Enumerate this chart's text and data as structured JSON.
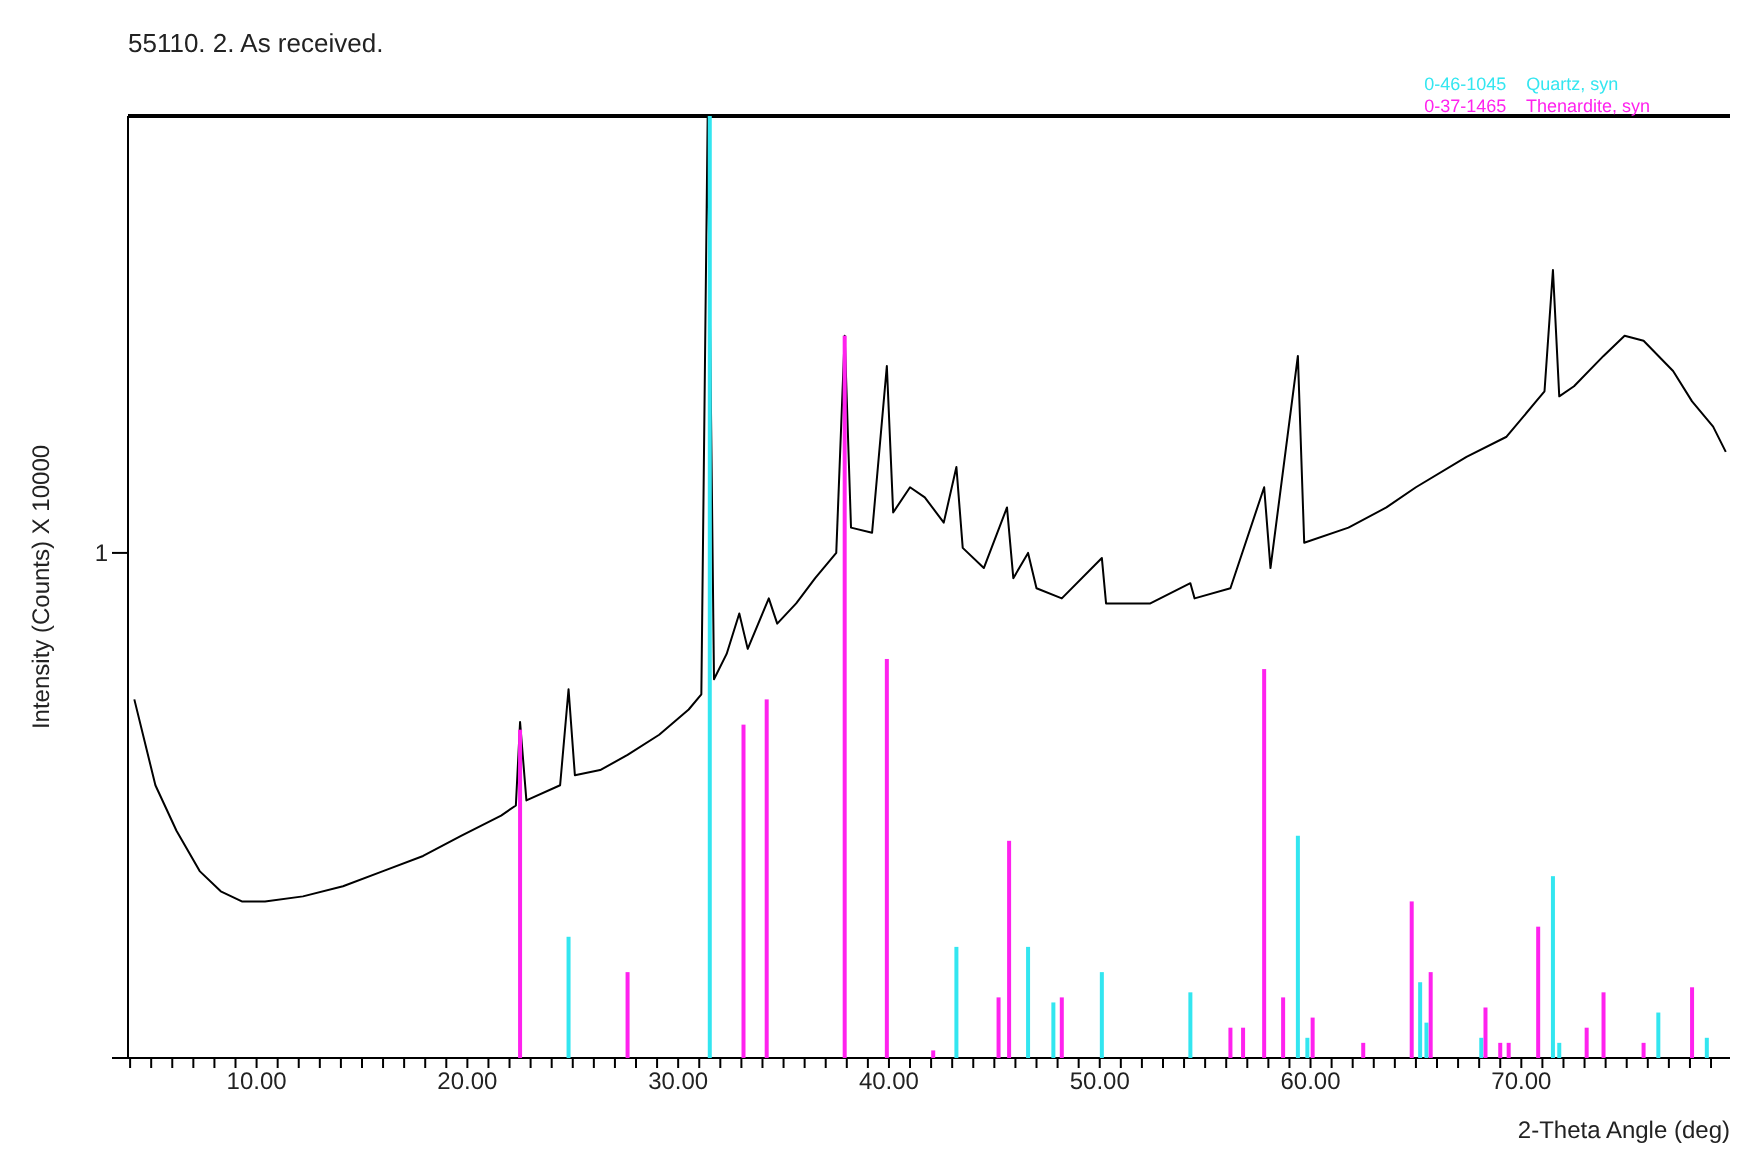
{
  "chart_data": {
    "type": "line",
    "title": "55110.  2.  As received.",
    "xlabel": "2-Theta Angle (deg)",
    "ylabel": "Intensity (Counts) X 10000",
    "xlim": [
      3.9,
      79.9
    ],
    "xticks": [
      {
        "value": 4,
        "label": null
      },
      {
        "value": 5,
        "label": null
      },
      {
        "value": 6,
        "label": null
      },
      {
        "value": 7,
        "label": null
      },
      {
        "value": 8,
        "label": null
      },
      {
        "value": 9,
        "label": null
      },
      {
        "value": 10,
        "label": "10.00"
      },
      {
        "value": 11,
        "label": null
      },
      {
        "value": 12,
        "label": null
      },
      {
        "value": 13,
        "label": null
      },
      {
        "value": 14,
        "label": null
      },
      {
        "value": 15,
        "label": null
      },
      {
        "value": 16,
        "label": null
      },
      {
        "value": 17,
        "label": null
      },
      {
        "value": 18,
        "label": null
      },
      {
        "value": 19,
        "label": null
      },
      {
        "value": 20,
        "label": "20.00"
      },
      {
        "value": 21,
        "label": null
      },
      {
        "value": 22,
        "label": null
      },
      {
        "value": 23,
        "label": null
      },
      {
        "value": 24,
        "label": null
      },
      {
        "value": 25,
        "label": null
      },
      {
        "value": 26,
        "label": null
      },
      {
        "value": 27,
        "label": null
      },
      {
        "value": 28,
        "label": null
      },
      {
        "value": 29,
        "label": null
      },
      {
        "value": 30,
        "label": "30.00"
      },
      {
        "value": 31,
        "label": null
      },
      {
        "value": 32,
        "label": null
      },
      {
        "value": 33,
        "label": null
      },
      {
        "value": 34,
        "label": null
      },
      {
        "value": 35,
        "label": null
      },
      {
        "value": 36,
        "label": null
      },
      {
        "value": 37,
        "label": null
      },
      {
        "value": 38,
        "label": null
      },
      {
        "value": 39,
        "label": null
      },
      {
        "value": 40,
        "label": "40.00"
      },
      {
        "value": 41,
        "label": null
      },
      {
        "value": 42,
        "label": null
      },
      {
        "value": 43,
        "label": null
      },
      {
        "value": 44,
        "label": null
      },
      {
        "value": 45,
        "label": null
      },
      {
        "value": 46,
        "label": null
      },
      {
        "value": 47,
        "label": null
      },
      {
        "value": 48,
        "label": null
      },
      {
        "value": 49,
        "label": null
      },
      {
        "value": 50,
        "label": "50.00"
      },
      {
        "value": 51,
        "label": null
      },
      {
        "value": 52,
        "label": null
      },
      {
        "value": 53,
        "label": null
      },
      {
        "value": 54,
        "label": null
      },
      {
        "value": 55,
        "label": null
      },
      {
        "value": 56,
        "label": null
      },
      {
        "value": 57,
        "label": null
      },
      {
        "value": 58,
        "label": null
      },
      {
        "value": 59,
        "label": null
      },
      {
        "value": 60,
        "label": "60.00"
      },
      {
        "value": 61,
        "label": null
      },
      {
        "value": 62,
        "label": null
      },
      {
        "value": 63,
        "label": null
      },
      {
        "value": 64,
        "label": null
      },
      {
        "value": 65,
        "label": null
      },
      {
        "value": 66,
        "label": null
      },
      {
        "value": 67,
        "label": null
      },
      {
        "value": 68,
        "label": null
      },
      {
        "value": 69,
        "label": null
      },
      {
        "value": 70,
        "label": "70.00"
      },
      {
        "value": 71,
        "label": null
      },
      {
        "value": 72,
        "label": null
      },
      {
        "value": 73,
        "label": null
      },
      {
        "value": 74,
        "label": null
      },
      {
        "value": 75,
        "label": null
      },
      {
        "value": 76,
        "label": null
      },
      {
        "value": 77,
        "label": null
      },
      {
        "value": 78,
        "label": null
      },
      {
        "value": 79,
        "label": null
      }
    ],
    "ylim": [
      0,
      1.865
    ],
    "yticks": [
      {
        "value": 0,
        "label": null
      },
      1
    ],
    "grid": false,
    "legend": "top right",
    "marker": "none",
    "line_style": "solid",
    "series": [
      {
        "color": "#000000",
        "x": [
          4.2,
          5.2,
          6.2,
          7.3,
          8.3,
          9.3,
          10.4,
          12.2,
          14.1,
          16.0,
          17.9,
          19.7,
          21.6,
          22.3,
          22.5,
          22.8,
          24.4,
          24.8,
          25.1,
          26.3,
          27.6,
          29.1,
          30.5,
          31.1,
          31.4,
          31.7,
          32.3,
          32.9,
          33.3,
          34.3,
          34.7,
          35.6,
          36.5,
          37.5,
          37.9,
          38.2,
          39.2,
          39.9,
          40.2,
          41.0,
          41.7,
          42.6,
          43.2,
          43.5,
          44.5,
          45.6,
          45.9,
          46.6,
          47.0,
          48.2,
          50.1,
          50.3,
          52.4,
          54.3,
          54.5,
          56.2,
          57.8,
          58.1,
          59.4,
          59.7,
          61.8,
          63.6,
          65.0,
          67.4,
          69.3,
          70.7,
          71.1,
          71.5,
          71.8,
          72.5,
          73.9,
          74.9,
          75.8,
          77.2,
          78.1,
          79.1,
          79.7
        ],
        "values": [
          0.71,
          0.54,
          0.45,
          0.37,
          0.33,
          0.31,
          0.31,
          0.32,
          0.34,
          0.37,
          0.4,
          0.44,
          0.48,
          0.5,
          0.665,
          0.51,
          0.54,
          0.73,
          0.56,
          0.57,
          0.6,
          0.64,
          0.69,
          0.72,
          1.865,
          0.75,
          0.8,
          0.88,
          0.81,
          0.91,
          0.86,
          0.9,
          0.95,
          1.0,
          1.43,
          1.05,
          1.04,
          1.37,
          1.08,
          1.13,
          1.11,
          1.06,
          1.17,
          1.01,
          0.97,
          1.09,
          0.95,
          1.0,
          0.93,
          0.91,
          0.99,
          0.9,
          0.9,
          0.94,
          0.91,
          0.93,
          1.13,
          0.97,
          1.39,
          1.02,
          1.05,
          1.09,
          1.13,
          1.19,
          1.23,
          1.3,
          1.32,
          1.56,
          1.31,
          1.33,
          1.39,
          1.43,
          1.42,
          1.36,
          1.3,
          1.25,
          1.2
        ]
      },
      {
        "type": "bar",
        "name": "0-46-1045    Quartz, syn",
        "color": "#33e6f0",
        "x": [
          24.8,
          31.5,
          43.2,
          46.6,
          47.8,
          50.1,
          54.3,
          59.4,
          59.85,
          65.2,
          65.5,
          68.1,
          71.5,
          71.8,
          76.5,
          78.8
        ],
        "values": [
          0.24,
          1.865,
          0.22,
          0.22,
          0.11,
          0.17,
          0.13,
          0.44,
          0.04,
          0.15,
          0.07,
          0.04,
          0.36,
          0.03,
          0.09,
          0.04
        ]
      },
      {
        "type": "bar",
        "name": "0-37-1465    Thenardite, syn",
        "color": "#ff22ee",
        "x": [
          22.5,
          27.6,
          33.1,
          34.2,
          37.9,
          39.9,
          42.1,
          45.2,
          45.7,
          48.2,
          56.2,
          56.8,
          57.8,
          58.7,
          60.1,
          62.5,
          64.8,
          65.7,
          68.3,
          69.0,
          69.4,
          70.8,
          73.1,
          73.9,
          75.8,
          78.1
        ],
        "values": [
          0.65,
          0.17,
          0.66,
          0.71,
          1.43,
          0.79,
          0.015,
          0.12,
          0.43,
          0.12,
          0.06,
          0.06,
          0.77,
          0.12,
          0.08,
          0.03,
          0.31,
          0.17,
          0.1,
          0.03,
          0.03,
          0.26,
          0.06,
          0.13,
          0.03,
          0.14
        ]
      }
    ]
  }
}
